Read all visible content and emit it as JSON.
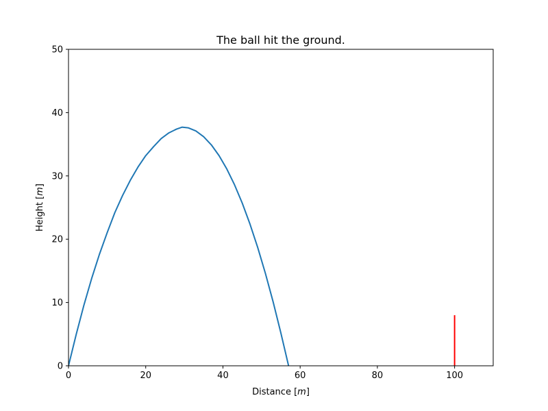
{
  "chart_data": {
    "type": "line",
    "title": "The ball hit the ground.",
    "xlabel_prefix": "Distance ",
    "xlabel_unit": "m",
    "ylabel_prefix": "Height ",
    "ylabel_unit": "m",
    "xlim": [
      0,
      110
    ],
    "ylim": [
      0,
      50
    ],
    "xticks": [
      0,
      20,
      40,
      60,
      80,
      100
    ],
    "yticks": [
      0,
      10,
      20,
      30,
      40,
      50
    ],
    "grid": false,
    "series": [
      {
        "color": "#1f77b4",
        "x": [
          0,
          2,
          4,
          6,
          8,
          10,
          12,
          14,
          16,
          18,
          20,
          22,
          24,
          26,
          28,
          29.4,
          31,
          33,
          35,
          37,
          39,
          41,
          43,
          45,
          47,
          49,
          51,
          53,
          55,
          57,
          58.8
        ],
        "y": [
          0,
          4.97,
          9.6,
          13.8,
          17.6,
          21.0,
          24.2,
          26.9,
          29.3,
          31.4,
          33.2,
          34.6,
          35.9,
          36.8,
          37.4,
          37.7,
          37.6,
          37.1,
          36.2,
          34.9,
          33.2,
          31.1,
          28.6,
          25.7,
          22.4,
          18.7,
          14.6,
          10.1,
          5.2,
          0,
          -1.7
        ]
      }
    ],
    "target_line": {
      "color": "#ff0000",
      "x": 100,
      "y_start": 0,
      "y_end": 8
    }
  }
}
